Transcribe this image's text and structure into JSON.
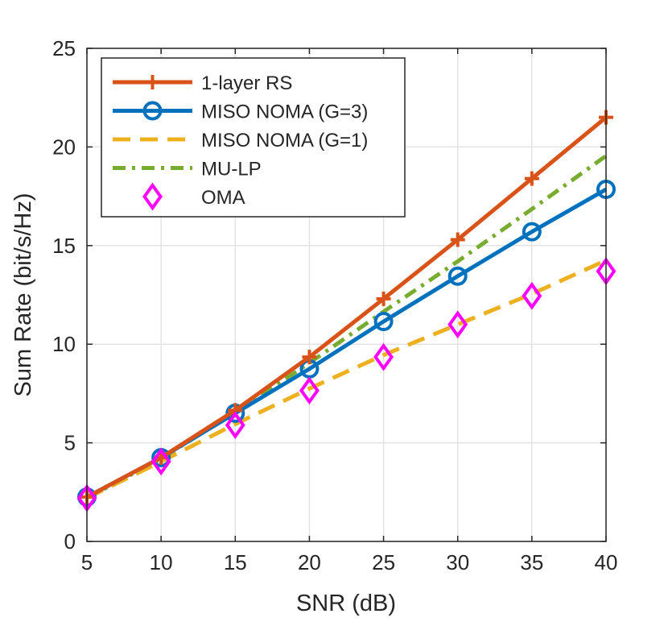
{
  "chart_data": {
    "type": "line",
    "xlabel": "SNR (dB)",
    "ylabel": "Sum Rate (bit/s/Hz)",
    "xlim": [
      5,
      40
    ],
    "ylim": [
      0,
      25
    ],
    "xticks": [
      5,
      10,
      15,
      20,
      25,
      30,
      35,
      40
    ],
    "yticks": [
      0,
      5,
      10,
      15,
      20,
      25
    ],
    "grid": true,
    "legend_position": "top-left",
    "x": [
      5,
      10,
      15,
      20,
      25,
      30,
      35,
      40
    ],
    "series": [
      {
        "name": "1-layer RS",
        "values": [
          2.25,
          4.25,
          6.65,
          9.35,
          12.3,
          15.3,
          18.4,
          21.5
        ],
        "color": "#D95319",
        "line_style": "solid",
        "marker": "plus"
      },
      {
        "name": "MISO NOMA (G=3)",
        "values": [
          2.25,
          4.25,
          6.5,
          8.75,
          11.15,
          13.45,
          15.7,
          17.85
        ],
        "color": "#0072BD",
        "line_style": "solid",
        "marker": "circle"
      },
      {
        "name": "MISO NOMA (G=1)",
        "values": [
          2.2,
          4.05,
          5.95,
          7.75,
          9.45,
          11.0,
          12.55,
          14.25
        ],
        "color": "#EDB120",
        "line_style": "dashed",
        "marker": "none"
      },
      {
        "name": "MU-LP",
        "values": [
          2.2,
          4.2,
          6.55,
          9.05,
          11.65,
          14.2,
          16.85,
          19.55
        ],
        "color": "#77AC30",
        "line_style": "dashdot",
        "marker": "none"
      },
      {
        "name": "OMA",
        "values": [
          2.2,
          4.05,
          5.9,
          7.65,
          9.35,
          11.0,
          12.45,
          13.7
        ],
        "color": "#FF00FF",
        "line_style": "none",
        "marker": "diamond"
      }
    ]
  }
}
